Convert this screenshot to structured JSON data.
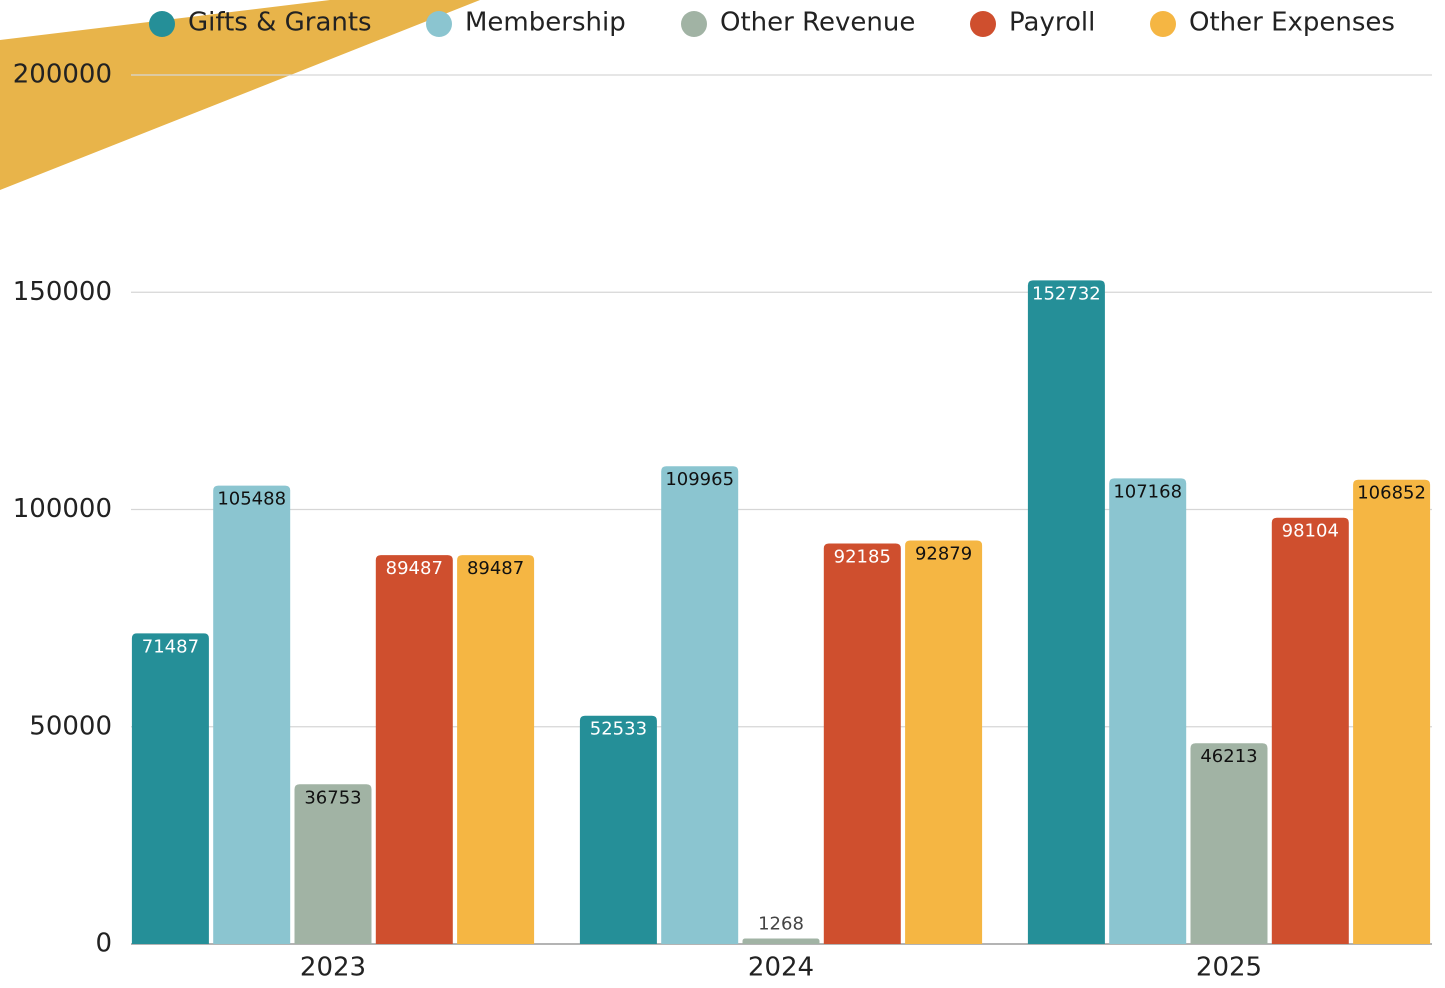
{
  "chart_data": {
    "type": "bar",
    "categories": [
      "2023",
      "2024",
      "2025"
    ],
    "series": [
      {
        "name": "Gifts & Grants",
        "color": "#258f98",
        "values": [
          71487,
          52533,
          152732
        ]
      },
      {
        "name": "Membership",
        "color": "#8bc5d0",
        "values": [
          105488,
          109965,
          107168
        ]
      },
      {
        "name": "Other Revenue",
        "color": "#a1b3a4",
        "values": [
          36753,
          1268,
          46213
        ]
      },
      {
        "name": "Payroll",
        "color": "#cf4f2e",
        "values": [
          89487,
          92185,
          98104
        ]
      },
      {
        "name": "Other Expenses",
        "color": "#f5b643",
        "values": [
          89487,
          92879,
          106852
        ]
      }
    ],
    "ylim": [
      0,
      200000
    ],
    "yticks": [
      0,
      50000,
      100000,
      150000,
      200000
    ],
    "grid": true,
    "legend": "top"
  }
}
